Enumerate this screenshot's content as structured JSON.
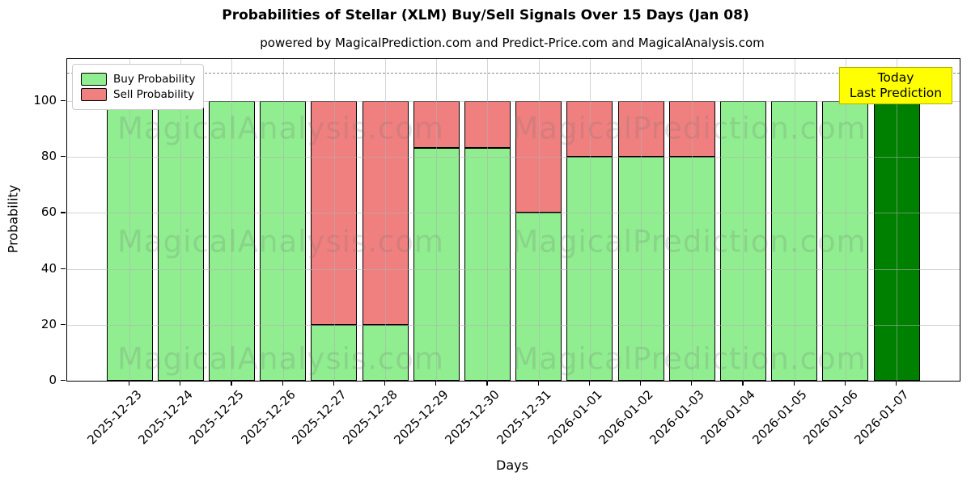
{
  "figure": {
    "title": "Probabilities of Stellar (XLM) Buy/Sell Signals Over 15 Days (Jan 08)",
    "subtitle": "powered by MagicalPrediction.com and Predict-Price.com and MagicalAnalysis.com"
  },
  "chart_data": {
    "type": "bar",
    "stacked": true,
    "title": "Probabilities of Stellar (XLM) Buy/Sell Signals Over 15 Days (Jan 08)",
    "subtitle": "powered by MagicalPrediction.com and Predict-Price.com and MagicalAnalysis.com",
    "xlabel": "Days",
    "ylabel": "Probability",
    "ylim": [
      0,
      115
    ],
    "yticks": [
      0,
      20,
      40,
      60,
      80,
      100
    ],
    "grid": true,
    "legend_position": "upper left",
    "categories": [
      "2025-12-23",
      "2025-12-24",
      "2025-12-25",
      "2025-12-26",
      "2025-12-27",
      "2025-12-28",
      "2025-12-29",
      "2025-12-30",
      "2025-12-31",
      "2026-01-01",
      "2026-01-02",
      "2026-01-03",
      "2026-01-04",
      "2026-01-05",
      "2026-01-06",
      "2026-01-07"
    ],
    "series": [
      {
        "name": "Buy Probability",
        "color": "#90EE90",
        "values": [
          100,
          100,
          100,
          100,
          20,
          20,
          83.33,
          83.33,
          60,
          80,
          80,
          80,
          100,
          100,
          100,
          100
        ]
      },
      {
        "name": "Sell Probability",
        "color": "#F08080",
        "values": [
          0,
          0,
          0,
          0,
          80,
          80,
          16.67,
          16.67,
          40,
          20,
          20,
          20,
          0,
          0,
          0,
          0
        ]
      }
    ],
    "last_bar_override": {
      "index": 15,
      "color": "#008000"
    },
    "dashed_line_y": 110,
    "bar_edge_color": "#000000"
  },
  "legend": {
    "items": [
      {
        "label": "Buy Probability",
        "color": "#90EE90"
      },
      {
        "label": "Sell Probability",
        "color": "#F08080"
      }
    ]
  },
  "annotation": {
    "line1": "Today",
    "line2": "Last Prediction",
    "bg_color": "#ffff00"
  },
  "watermarks": {
    "left_text": "MagicalAnalysis.com",
    "right_text": "MagicalPrediction.com"
  },
  "axes": {
    "xlabel": "Days",
    "ylabel": "Probability"
  }
}
